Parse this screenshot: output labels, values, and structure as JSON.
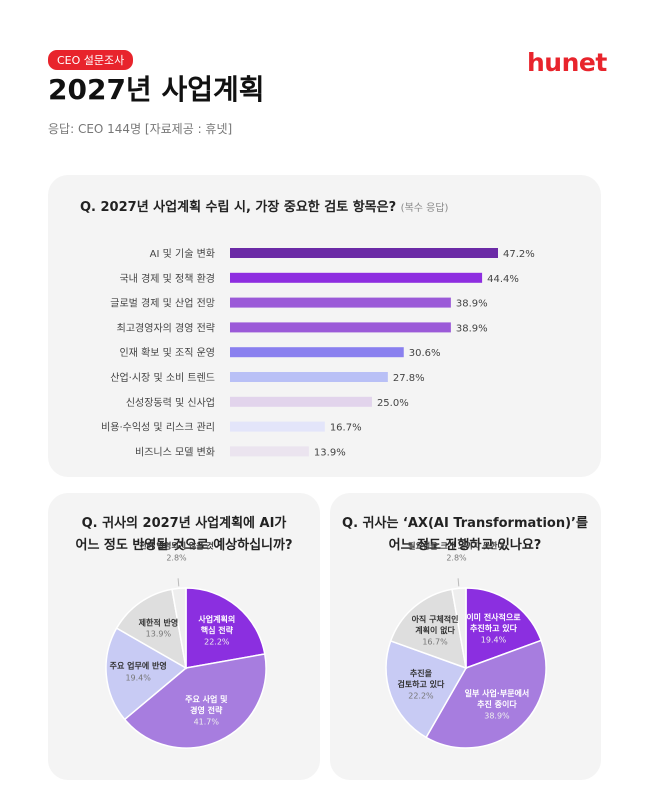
{
  "header": {
    "badge": "CEO 설문조사",
    "title": "2027년 사업계획",
    "subtitle": "응답: CEO 144명 [자료제공 : 휴넷]",
    "logo": "hunet"
  },
  "chart_data": [
    {
      "type": "bar",
      "title": "Q. 2027년 사업계획 수립 시, 가장 중요한 검토 항목은?",
      "note": "(복수 응답)",
      "categories": [
        "AI 및 기술 변화",
        "국내 경제 및 정책 환경",
        "글로벌 경제 및 산업 전망",
        "최고경영자의 경영 전략",
        "인재 확보 및 조직 운영",
        "산업·시장 및 소비 트렌드",
        "신성장동력 및 신사업",
        "비용·수익성 및 리스크 관리",
        "비즈니스 모델 변화"
      ],
      "values": [
        47.2,
        44.4,
        38.9,
        38.9,
        30.6,
        27.8,
        25.0,
        16.7,
        13.9
      ],
      "value_labels": [
        "47.2%",
        "44.4%",
        "38.9%",
        "38.9%",
        "30.6%",
        "27.8%",
        "25.0%",
        "16.7%",
        "13.9%"
      ],
      "colors": [
        "#6b2aa6",
        "#8e2ee0",
        "#9b5ad8",
        "#9b5ad8",
        "#8a80ef",
        "#b9c0f6",
        "#e2d4ec",
        "#e3e5fa",
        "#ebe4ef"
      ]
    },
    {
      "type": "pie",
      "title": [
        "Q. 귀사의 2027년 사업계획에 AI가",
        "어느 정도 반영될 것으로 예상하십니까?"
      ],
      "categories": [
        "사업계획의\n핵심 전략",
        "주요 사업 및\n경영 전략",
        "주요 업무에 반영",
        "제한적 반영",
        "전혀 반영되지 않을 것"
      ],
      "values": [
        22.2,
        41.7,
        19.4,
        13.9,
        2.8
      ],
      "value_labels": [
        "22.2%",
        "41.7%",
        "19.4%",
        "13.9%",
        "2.8%"
      ],
      "colors": [
        "#8b2fe0",
        "#a77ddf",
        "#c8cbf4",
        "#dedede",
        "#eeeeee"
      ]
    },
    {
      "type": "pie",
      "title": [
        "Q. 귀사는 ‘AX(AI Transformation)’를",
        "어느 정도 진행하고 있나요?"
      ],
      "categories": [
        "이미 전사적으로\n추진하고 있다",
        "일부 사업·부문에서\n추진 중이다",
        "추진을\n검토하고 있다",
        "아직 구체적인\n계획이 없다",
        "필요성을 크게 느끼지 못한다"
      ],
      "values": [
        19.4,
        38.9,
        22.2,
        16.7,
        2.8
      ],
      "value_labels": [
        "19.4%",
        "38.9%",
        "22.2%",
        "16.7%",
        "2.8%"
      ],
      "colors": [
        "#8b2fe0",
        "#a77ddf",
        "#c8cbf4",
        "#dedede",
        "#eeeeee"
      ]
    }
  ]
}
